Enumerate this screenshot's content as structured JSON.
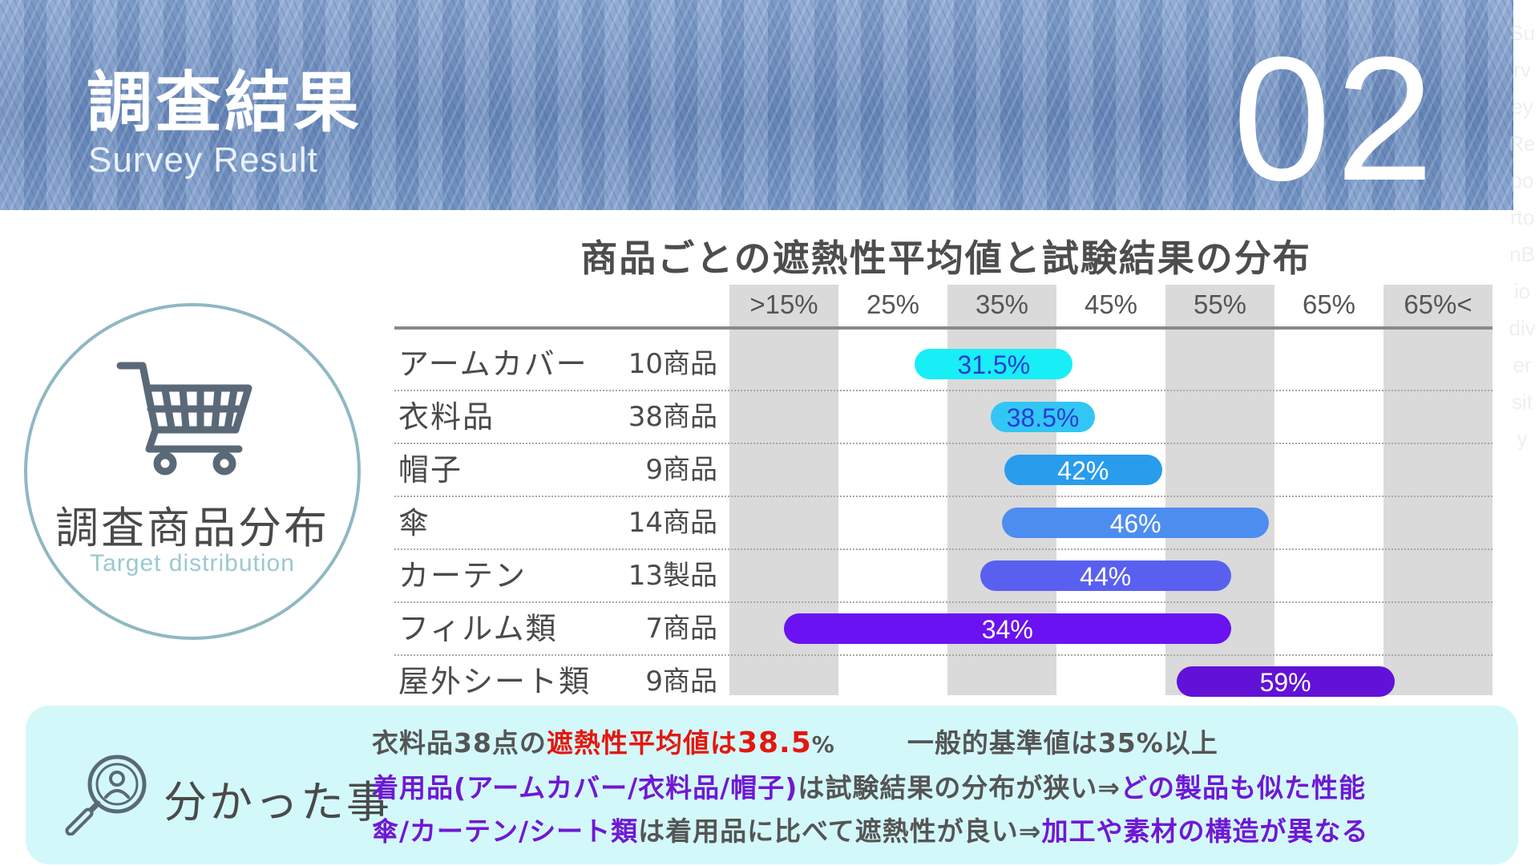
{
  "header": {
    "title": "調査結果",
    "subtitle": "Survey Result",
    "section_number": "02",
    "side_text": "SurveyReportonBiodiversity"
  },
  "target": {
    "icon": "shopping-cart-icon",
    "title": "調査商品分布",
    "subtitle": "Target distribution"
  },
  "chart_data": {
    "type": "bar",
    "title": "商品ごとの遮熱性平均値と試験結果の分布",
    "x_ticks": [
      ">15%",
      "25%",
      "35%",
      "45%",
      "55%",
      "65%",
      "65%<"
    ],
    "rows": [
      {
        "name": "アームカバー",
        "count": "10商品",
        "label": "31.5%",
        "range": [
          27.0,
          41.5
        ],
        "color": "#18eef6",
        "text_color": "#2b3bd6"
      },
      {
        "name": "衣料品",
        "count": "38商品",
        "label": "38.5%",
        "range": [
          34.0,
          43.5
        ],
        "color": "#32c6f5",
        "text_color": "#2b3bd6"
      },
      {
        "name": "帽子",
        "count": "9商品",
        "label": "42%",
        "range": [
          35.2,
          49.7
        ],
        "color": "#2a9cec",
        "text_color": "#ffffff"
      },
      {
        "name": "傘",
        "count": "14商品",
        "label": "46%",
        "range": [
          35.0,
          59.5
        ],
        "color": "#4e8df0",
        "text_color": "#ffffff"
      },
      {
        "name": "カーテン",
        "count": "13製品",
        "label": "44%",
        "range": [
          33.0,
          56.0
        ],
        "color": "#5960f0",
        "text_color": "#ffffff"
      },
      {
        "name": "フィルム類",
        "count": "7商品",
        "label": "34%",
        "range": [
          15.0,
          56.0
        ],
        "color": "#6a12f2",
        "text_color": "#ffffff"
      },
      {
        "name": "屋外シート類",
        "count": "9商品",
        "label": "59%",
        "range": [
          51.0,
          71.0
        ],
        "color": "#6112d6",
        "text_color": "#ffffff"
      }
    ],
    "colors": {
      "band": "#dadada",
      "axis_line": "#8a8a8a"
    }
  },
  "findings": {
    "icon": "magnifier-person-icon",
    "label": "分かった事",
    "line1": {
      "a": "衣料品38点の",
      "b": "遮熱性平均値は",
      "c": "38.5",
      "d": "%",
      "e": "一般的基準値は35%以上"
    },
    "line2": {
      "a": "着用品(アームカバー/衣料品/帽子)",
      "b": "は試験結果の分布が狭い⇒",
      "c": "どの製品も似た性能"
    },
    "line3": {
      "a": "傘/カーテン/シート類",
      "b": "は着用品に比べて遮熱性が良い⇒",
      "c": "加工や素材の構造が異なる"
    },
    "colors": {
      "red": "#e4170f",
      "purple": "#6f18d4",
      "box": "#d3f8fa"
    }
  }
}
